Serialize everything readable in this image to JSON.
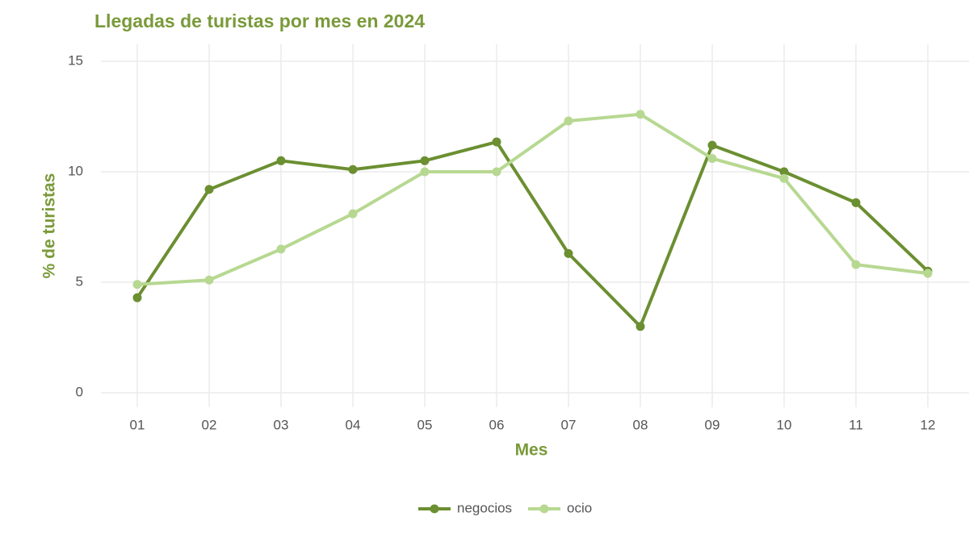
{
  "chart_data": {
    "type": "line",
    "title": "Llegadas de turistas por mes en 2024",
    "x_label": "Mes",
    "y_label": "% de turistas",
    "categories": [
      "01",
      "02",
      "03",
      "04",
      "05",
      "06",
      "07",
      "08",
      "09",
      "10",
      "11",
      "12"
    ],
    "series": [
      {
        "name": "negocios",
        "color": "#6b8f31",
        "values": [
          4.3,
          9.2,
          10.5,
          10.1,
          10.5,
          11.35,
          6.3,
          3.0,
          11.2,
          10.0,
          8.6,
          5.5
        ]
      },
      {
        "name": "ocio",
        "color": "#b7d891",
        "values": [
          4.9,
          5.1,
          6.5,
          8.1,
          10.0,
          10.0,
          12.3,
          12.6,
          10.6,
          9.7,
          5.8,
          5.4
        ]
      }
    ],
    "ylim": [
      0,
      15
    ],
    "yticks": [
      0,
      5,
      10,
      15
    ],
    "grid": true,
    "legend": "bottom"
  }
}
